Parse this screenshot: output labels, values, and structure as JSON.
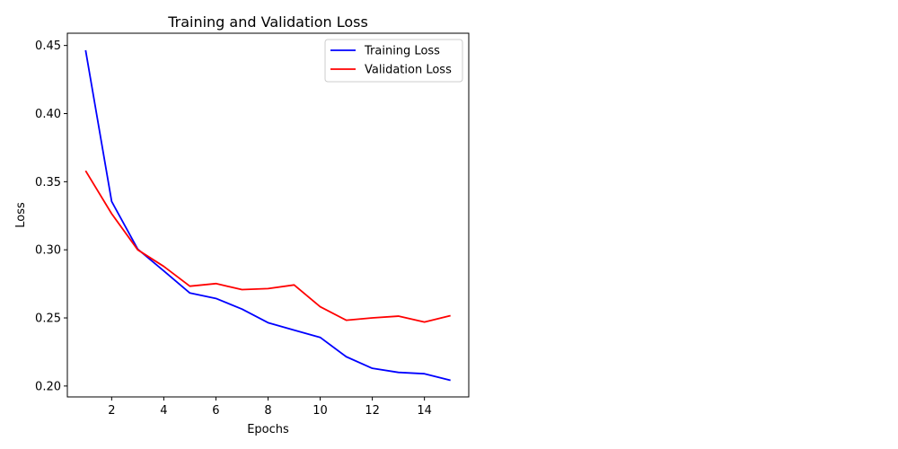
{
  "chart_data": {
    "type": "line",
    "title": "Training and Validation Loss",
    "xlabel": "Epochs",
    "ylabel": "Loss",
    "xlim": [
      0.3,
      15.7
    ],
    "ylim": [
      0.192,
      0.459
    ],
    "xticks": [
      2,
      4,
      6,
      8,
      10,
      12,
      14
    ],
    "xtick_labels": [
      "2",
      "4",
      "6",
      "8",
      "10",
      "12",
      "14"
    ],
    "yticks": [
      0.2,
      0.25,
      0.3,
      0.35,
      0.4,
      0.45
    ],
    "ytick_labels": [
      "0.20",
      "0.25",
      "0.30",
      "0.35",
      "0.40",
      "0.45"
    ],
    "x": [
      1,
      2,
      3,
      4,
      5,
      6,
      7,
      8,
      9,
      10,
      11,
      12,
      13,
      14,
      15
    ],
    "series": [
      {
        "name": "Training Loss",
        "color": "#0000ff",
        "values": [
          0.4465,
          0.3355,
          0.3005,
          0.2845,
          0.2683,
          0.2643,
          0.2565,
          0.2465,
          0.241,
          0.2357,
          0.2215,
          0.213,
          0.21,
          0.209,
          0.2042
        ]
      },
      {
        "name": "Validation Loss",
        "color": "#ff0000",
        "values": [
          0.358,
          0.3265,
          0.3,
          0.2878,
          0.2733,
          0.2752,
          0.2708,
          0.2715,
          0.2742,
          0.2582,
          0.2483,
          0.25,
          0.2513,
          0.247,
          0.2517
        ]
      }
    ],
    "grid": false,
    "legend_position": "top-right"
  }
}
